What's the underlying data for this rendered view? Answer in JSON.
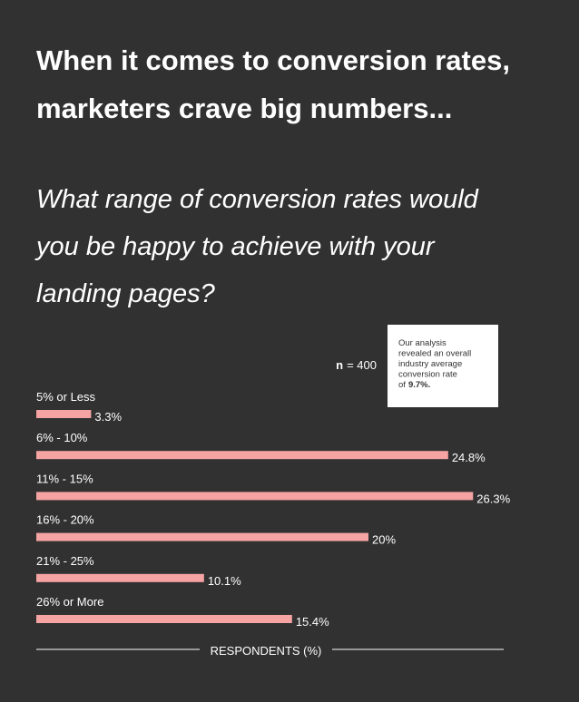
{
  "chart_data": {
    "type": "bar",
    "orientation": "horizontal",
    "title": [
      "When it comes to conversion rates,",
      "marketers crave big numbers..."
    ],
    "subtitle": [
      "What range of conversion rates would",
      "you be happy to achieve with your",
      "landing pages?"
    ],
    "categories": [
      "5% or Less",
      "6% - 10%",
      "11% - 15%",
      "16% - 20%",
      "21% - 25%",
      "26% or More"
    ],
    "values": [
      3.3,
      24.8,
      26.3,
      20,
      10.1,
      15.4
    ],
    "value_labels": [
      "3.3%",
      "24.8%",
      "26.3%",
      "20%",
      "10.1%",
      "15.4%"
    ],
    "color": "#f5a3a3",
    "xlim": [
      0,
      30
    ],
    "xlabel": "RESPONDENTS (%)",
    "sample": {
      "label": "n",
      "value": "= 400"
    },
    "note": {
      "lines": [
        "Our analysis",
        "revealed an overall",
        "industry average",
        "conversion rate"
      ],
      "lead": "of",
      "highlight": "9.7%."
    }
  }
}
